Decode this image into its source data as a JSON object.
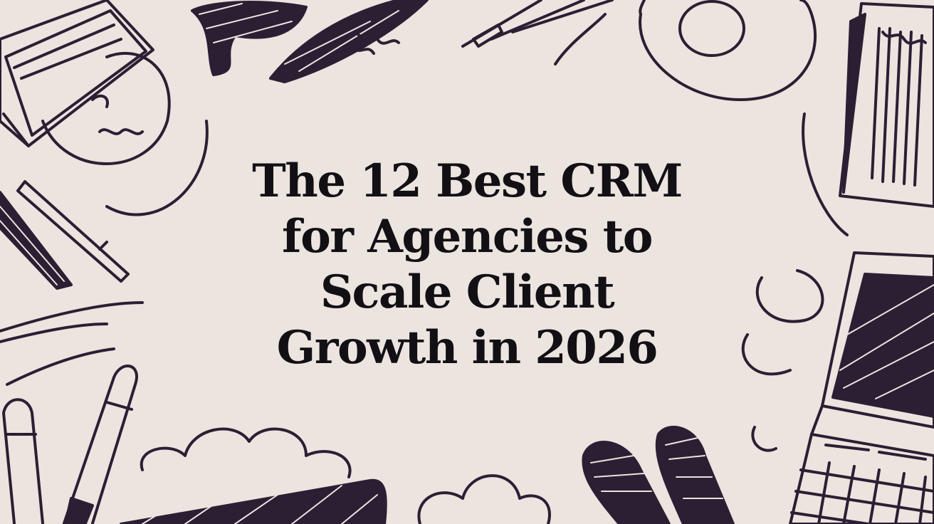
{
  "page": {
    "background_color": "#ece4df",
    "ink_color": "#2a1f33"
  },
  "headline": {
    "lines": [
      "The 12 Best CRM",
      "for Agencies to",
      "Scale Client",
      "Growth in 2026"
    ]
  },
  "decorations": {
    "icons": [
      "clipboard-doodle-icon",
      "scribble-blob-icon",
      "pen-doodle-icon",
      "circle-doodle-icon",
      "notepad-doodle-icon",
      "pencil-doodle-icon",
      "marker-doodle-icon",
      "cloud-doodle-icon",
      "laptop-doodle-icon",
      "calendar-grid-doodle-icon"
    ]
  }
}
